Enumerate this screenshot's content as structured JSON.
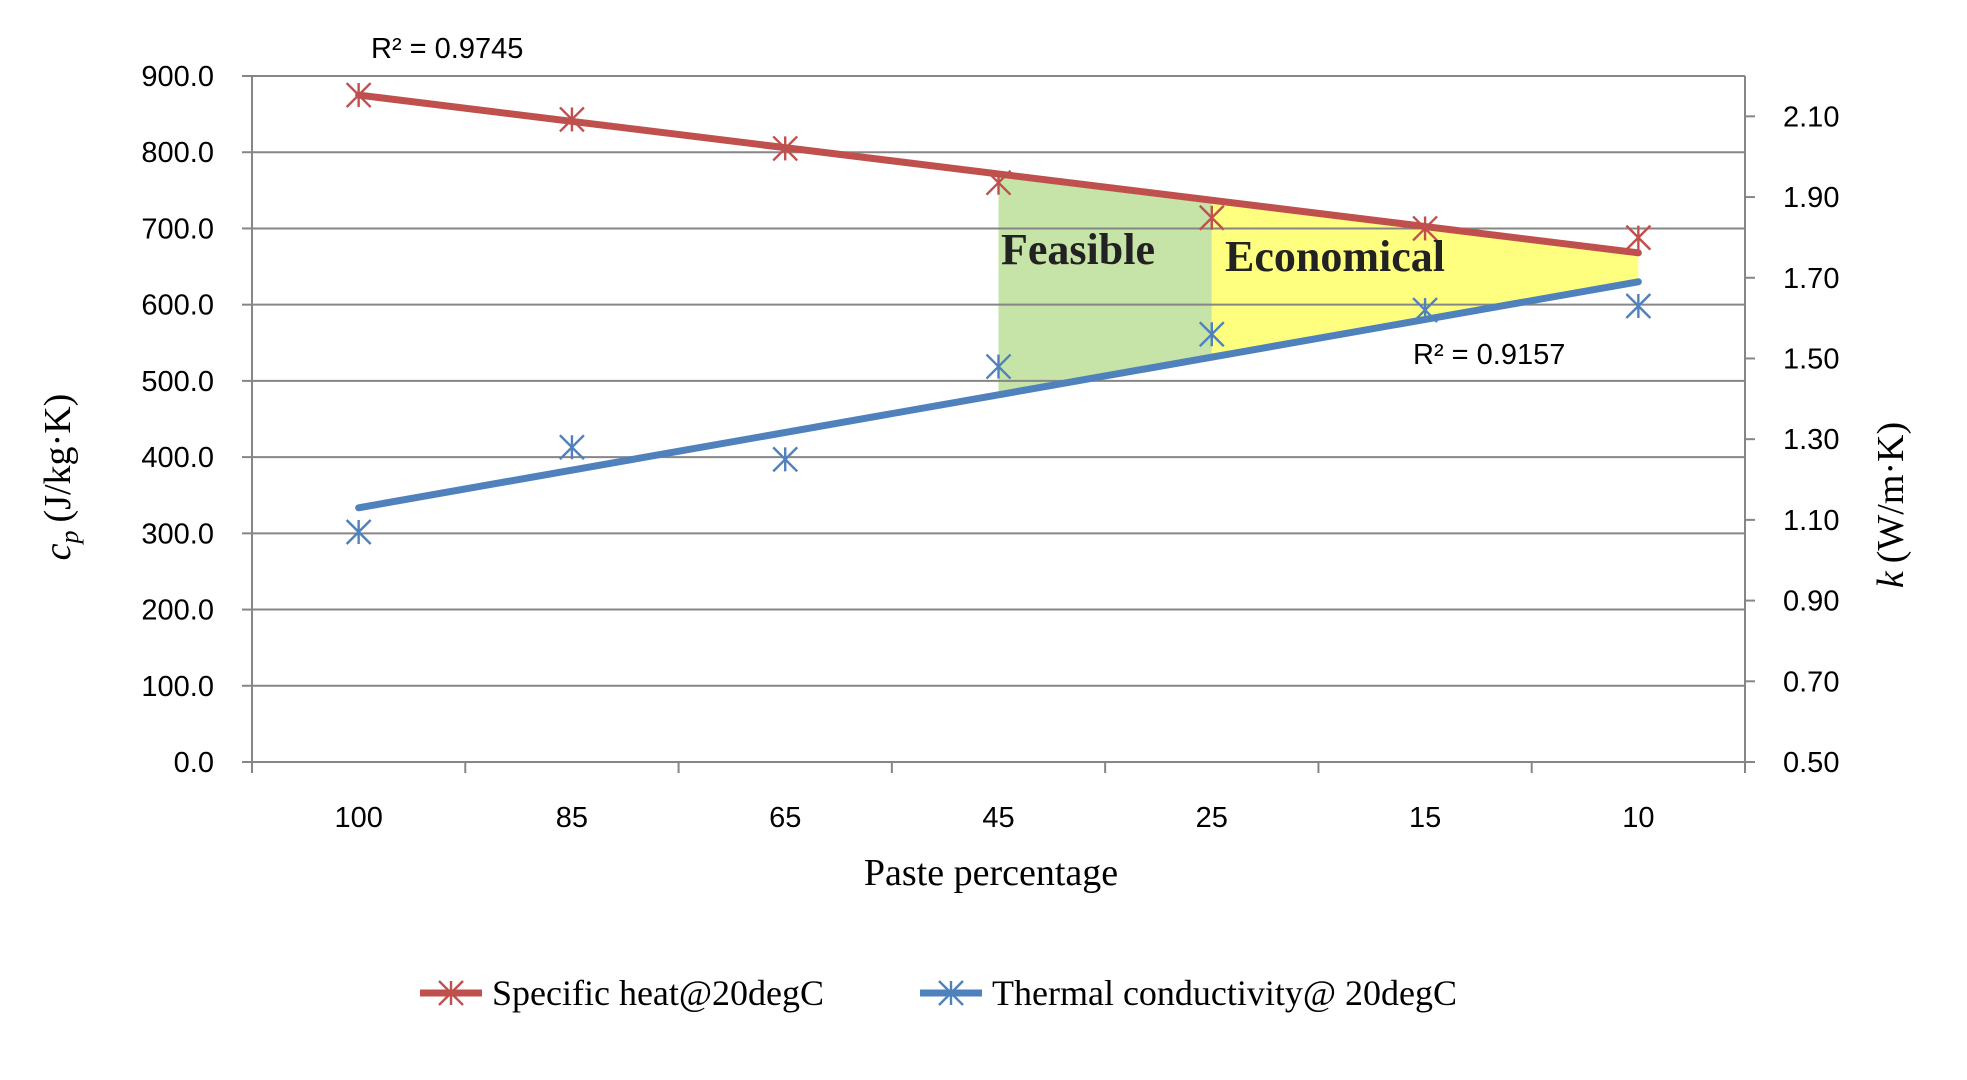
{
  "chart_data": {
    "type": "line",
    "x_axis": {
      "label": "Paste percentage",
      "categories": [
        "100",
        "85",
        "65",
        "45",
        "25",
        "15",
        "10"
      ]
    },
    "y_axis_left": {
      "label_symbol": "c",
      "label_subscript": "p",
      "label_units": "(J/kg·K)",
      "min": 0,
      "max": 900,
      "ticks": [
        "0.0",
        "100.0",
        "200.0",
        "300.0",
        "400.0",
        "500.0",
        "600.0",
        "700.0",
        "800.0",
        "900.0"
      ]
    },
    "y_axis_right": {
      "label_symbol": "k",
      "label_units": "(W/m·K)",
      "min": 0.5,
      "max": 2.2,
      "ticks": [
        "0.50",
        "0.70",
        "0.90",
        "1.10",
        "1.30",
        "1.50",
        "1.70",
        "1.90",
        "2.10"
      ]
    },
    "series": [
      {
        "name": "Specific heat@20degC",
        "axis": "left",
        "color": "#C0504D",
        "marker": "asterisk",
        "values": [
          875,
          843,
          805,
          760,
          714,
          700,
          688
        ],
        "trendline": {
          "type": "linear",
          "start": 875,
          "end": 668,
          "r2_label": "R² = 0.9745"
        }
      },
      {
        "name": "Thermal conductivity@ 20degC",
        "axis": "right",
        "color": "#4F81BD",
        "marker": "asterisk",
        "values": [
          1.07,
          1.28,
          1.25,
          1.48,
          1.56,
          1.62,
          1.63
        ],
        "trendline": {
          "type": "linear",
          "start": 1.13,
          "end": 1.69,
          "r2_label": "R² = 0.9157"
        }
      }
    ],
    "regions": [
      {
        "label": "Feasible",
        "from_category": "45",
        "to_category": "25",
        "color": "#C6E3A8"
      },
      {
        "label": "Economical",
        "from_category": "25",
        "to_category": "10",
        "color": "#FFFF7F"
      }
    ],
    "legend": {
      "position": "bottom"
    },
    "grid": {
      "horizontal": true,
      "vertical": false
    }
  }
}
